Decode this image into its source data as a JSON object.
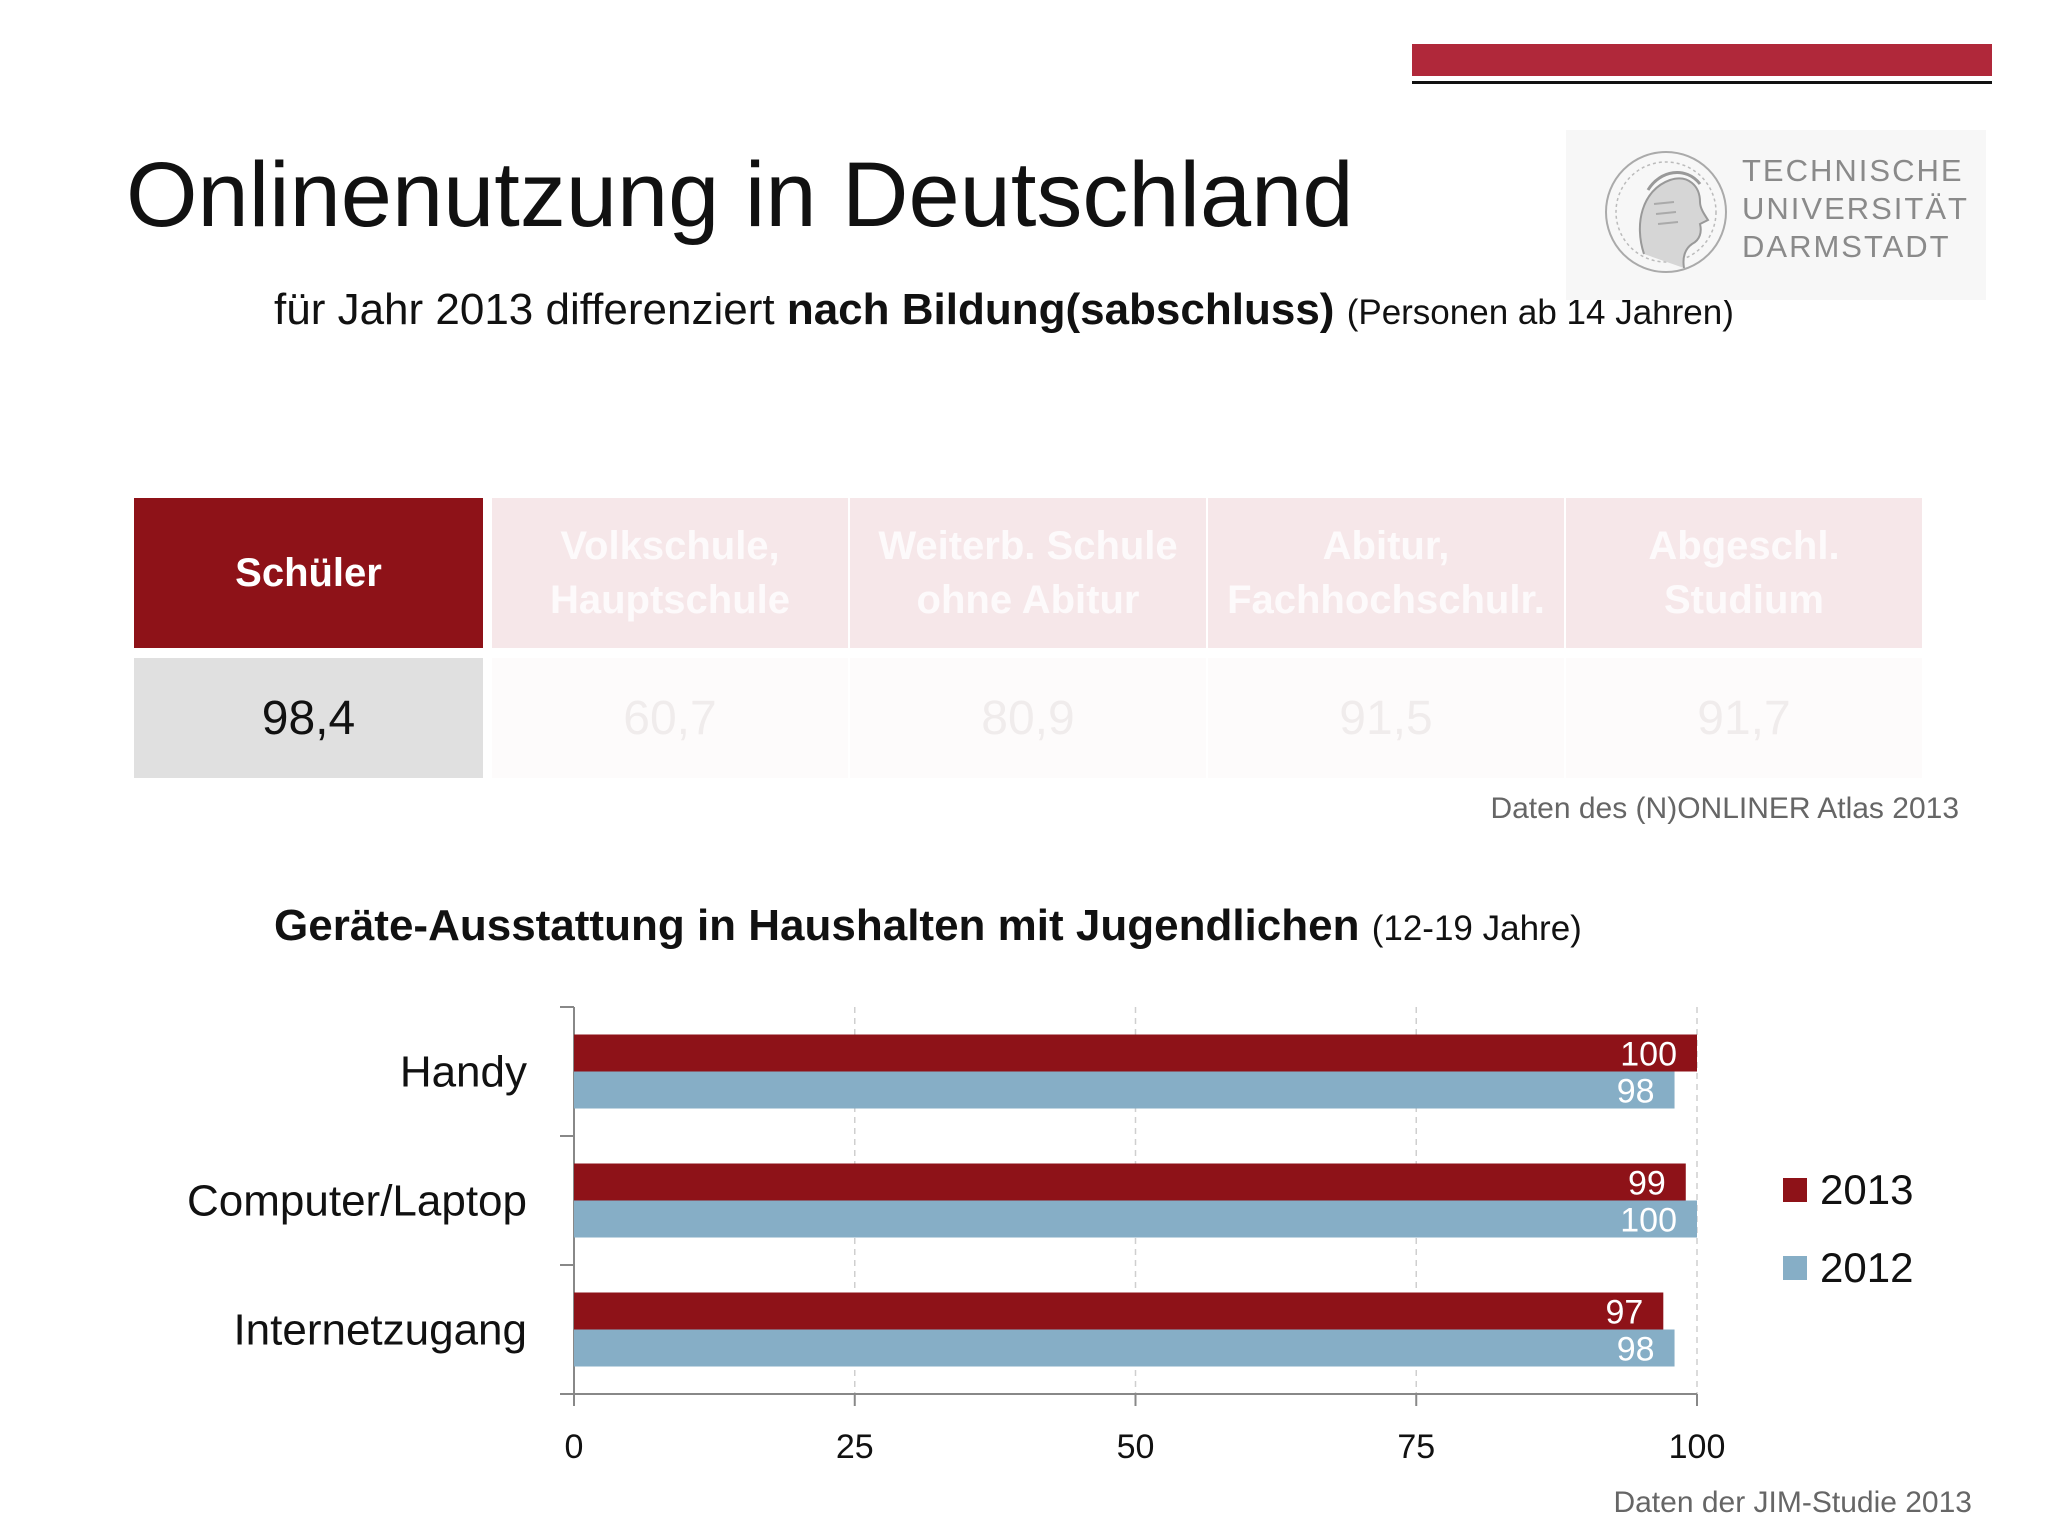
{
  "title": "Onlinenutzung in Deutschland",
  "subtitle": {
    "part1": "für Jahr 2013 differenziert ",
    "bold": "nach Bildung(sabschluss)",
    "small": "(Personen ab 14 Jahren)"
  },
  "logo": {
    "line1": "TECHNISCHE",
    "line2": "UNIVERSITÄT",
    "line3": "DARMSTADT"
  },
  "table": {
    "columns": [
      {
        "header": "Schüler",
        "value": "98,4"
      },
      {
        "header": "Volkschule, Hauptschule",
        "value": "60,7"
      },
      {
        "header": "Weiterb. Schule ohne Abitur",
        "value": "80,9"
      },
      {
        "header": "Abitur, Fachhochschulr.",
        "value": "91,5"
      },
      {
        "header": "Abgeschl. Studium",
        "value": "91,7"
      }
    ],
    "source": "Daten des (N)ONLINER Atlas 2013"
  },
  "chart_title": {
    "bold": "Geräte-Ausstattung in Haushalten mit Jugendlichen",
    "small": "(12-19 Jahre)"
  },
  "chart_data": {
    "type": "bar",
    "orientation": "horizontal",
    "categories": [
      "Handy",
      "Computer/Laptop",
      "Internetzugang"
    ],
    "series": [
      {
        "name": "2013",
        "values": [
          100,
          99,
          97
        ],
        "color": "#8e1218"
      },
      {
        "name": "2012",
        "values": [
          98,
          100,
          98
        ],
        "color": "#86aec6"
      }
    ],
    "xlim": [
      0,
      100
    ],
    "xticks": [
      0,
      25,
      50,
      75,
      100
    ],
    "grid": "vertical dashed",
    "legend": "right"
  },
  "chart_source": "Daten der JIM-Studie 2013"
}
